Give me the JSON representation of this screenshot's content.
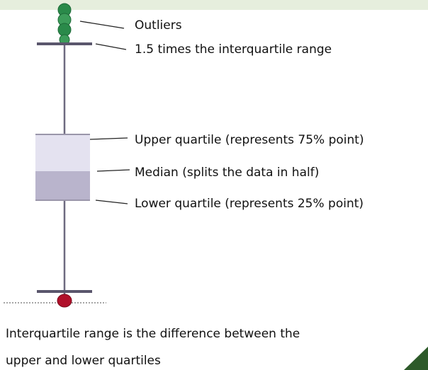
{
  "labels": {
    "outliers": "Outliers",
    "whisker": "1.5 times the interquartile range",
    "upper_quartile": "Upper quartile (represents 75% point)",
    "median": "Median (splits the data in half)",
    "lower_quartile": "Lower quartile (represents 25% point)"
  },
  "caption": [
    "Interquartile range is the difference between the",
    "upper and lower quartiles"
  ]
}
